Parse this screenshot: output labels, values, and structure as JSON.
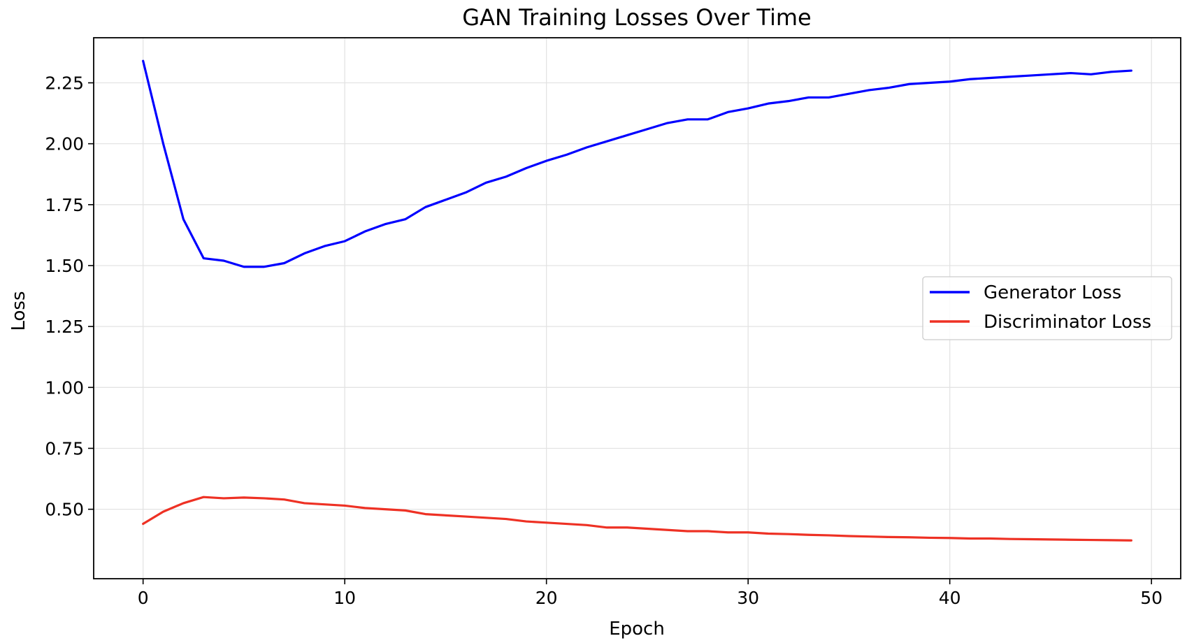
{
  "chart_data": {
    "type": "line",
    "title": "GAN Training Losses Over Time",
    "xlabel": "Epoch",
    "ylabel": "Loss",
    "xlim": [
      -2.45,
      51.45
    ],
    "ylim": [
      0.215,
      2.435
    ],
    "xticks": [
      0,
      10,
      20,
      30,
      40,
      50
    ],
    "xtick_labels": [
      "0",
      "10",
      "20",
      "30",
      "40",
      "50"
    ],
    "yticks": [
      0.5,
      0.75,
      1.0,
      1.25,
      1.5,
      1.75,
      2.0,
      2.25
    ],
    "ytick_labels": [
      "0.50",
      "0.75",
      "1.00",
      "1.25",
      "1.50",
      "1.75",
      "2.00",
      "2.25"
    ],
    "grid": true,
    "legend_position": "center-right",
    "x": [
      0,
      1,
      2,
      3,
      4,
      5,
      6,
      7,
      8,
      9,
      10,
      11,
      12,
      13,
      14,
      15,
      16,
      17,
      18,
      19,
      20,
      21,
      22,
      23,
      24,
      25,
      26,
      27,
      28,
      29,
      30,
      31,
      32,
      33,
      34,
      35,
      36,
      37,
      38,
      39,
      40,
      41,
      42,
      43,
      44,
      45,
      46,
      47,
      48,
      49
    ],
    "series": [
      {
        "name": "Generator Loss",
        "color": "#0000ff",
        "values": [
          2.34,
          2.0,
          1.69,
          1.53,
          1.52,
          1.495,
          1.495,
          1.51,
          1.55,
          1.58,
          1.6,
          1.64,
          1.67,
          1.69,
          1.74,
          1.77,
          1.8,
          1.84,
          1.865,
          1.9,
          1.93,
          1.955,
          1.985,
          2.01,
          2.035,
          2.06,
          2.085,
          2.1,
          2.1,
          2.13,
          2.145,
          2.165,
          2.175,
          2.19,
          2.19,
          2.205,
          2.22,
          2.23,
          2.245,
          2.25,
          2.255,
          2.265,
          2.27,
          2.275,
          2.28,
          2.285,
          2.29,
          2.285,
          2.295,
          2.3
        ]
      },
      {
        "name": "Discriminator Loss",
        "color": "#ee3124",
        "values": [
          0.44,
          0.49,
          0.525,
          0.55,
          0.545,
          0.548,
          0.545,
          0.54,
          0.525,
          0.52,
          0.515,
          0.505,
          0.5,
          0.495,
          0.48,
          0.475,
          0.47,
          0.465,
          0.46,
          0.45,
          0.445,
          0.44,
          0.435,
          0.425,
          0.425,
          0.42,
          0.415,
          0.41,
          0.41,
          0.405,
          0.405,
          0.4,
          0.398,
          0.395,
          0.393,
          0.39,
          0.388,
          0.386,
          0.385,
          0.383,
          0.382,
          0.38,
          0.38,
          0.378,
          0.377,
          0.376,
          0.375,
          0.374,
          0.373,
          0.372
        ]
      }
    ]
  }
}
